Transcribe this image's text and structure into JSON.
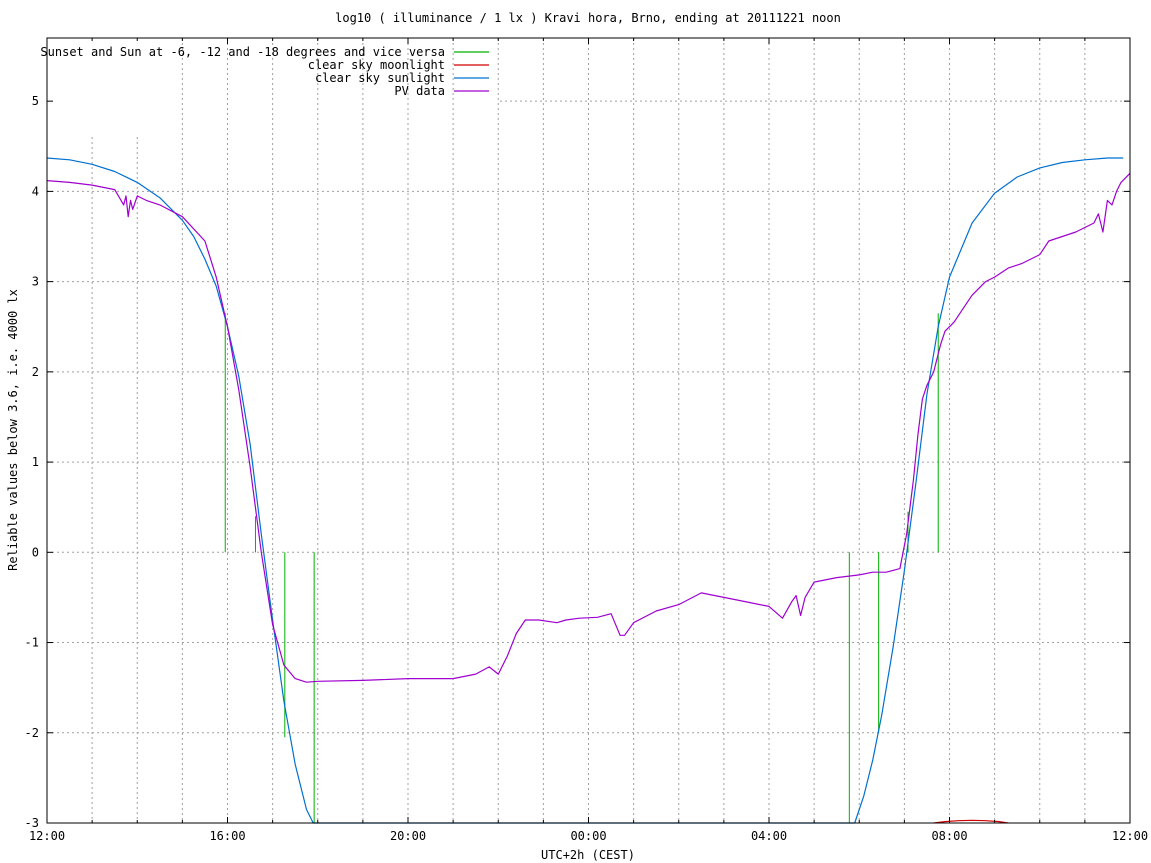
{
  "chart_data": {
    "type": "line",
    "title": "log10 ( illuminance / 1 lx ) Kravi hora, Brno, ending at 20111221 noon",
    "xlabel": "UTC+2h (CEST)",
    "ylabel": "Reliable values below 3.6, i.e. 4000 lx",
    "xlim": [
      12,
      36
    ],
    "ylim": [
      -3,
      5.7
    ],
    "grid": true,
    "legend_position": "top-left",
    "x_tick_values": [
      12,
      16,
      20,
      24,
      28,
      32,
      36
    ],
    "x_tick_labels": [
      "12:00",
      "16:00",
      "20:00",
      "00:00",
      "04:00",
      "08:00",
      "12:00"
    ],
    "x_minor_grid_step": 1,
    "y_ticks": [
      "-3",
      "-2",
      "-1",
      "0",
      "1",
      "2",
      "3",
      "4",
      "5"
    ],
    "series": [
      {
        "name": "Sunset and Sun at -6, -12 and -18 degrees and vice versa",
        "color": "#00b000",
        "kind": "impulses",
        "segments": [
          {
            "x": 15.95,
            "y0": 0,
            "y1": 2.65
          },
          {
            "x": 16.62,
            "y0": 0,
            "y1": 0.4
          },
          {
            "x": 17.27,
            "y0": 0,
            "y1": -2.05
          },
          {
            "x": 17.92,
            "y0": 0,
            "y1": -3
          },
          {
            "x": 29.78,
            "y0": 0,
            "y1": -3
          },
          {
            "x": 30.43,
            "y0": 0,
            "y1": -2.0
          },
          {
            "x": 31.08,
            "y0": 0,
            "y1": 0.45
          },
          {
            "x": 31.75,
            "y0": 0,
            "y1": 2.65
          }
        ]
      },
      {
        "name": "clear sky moonlight",
        "color": "#d00000",
        "x": [
          31.65,
          31.9,
          32.2,
          32.5,
          32.8,
          33.1,
          33.3
        ],
        "y": [
          -3.0,
          -2.985,
          -2.975,
          -2.97,
          -2.975,
          -2.985,
          -3.0
        ]
      },
      {
        "name": "clear sky sunlight",
        "color": "#0070d0",
        "x": [
          12.0,
          12.5,
          13.0,
          13.5,
          14.0,
          14.5,
          15.0,
          15.25,
          15.5,
          15.75,
          16.0,
          16.25,
          16.5,
          16.75,
          17.0,
          17.25,
          17.5,
          17.75,
          17.9,
          29.9,
          30.1,
          30.3,
          30.5,
          30.75,
          31.0,
          31.25,
          31.5,
          31.75,
          32.0,
          32.5,
          33.0,
          33.5,
          34.0,
          34.5,
          35.0,
          35.5,
          35.85
        ],
        "y": [
          4.37,
          4.35,
          4.3,
          4.22,
          4.1,
          3.93,
          3.68,
          3.5,
          3.25,
          2.95,
          2.5,
          1.95,
          1.2,
          0.2,
          -0.75,
          -1.65,
          -2.35,
          -2.85,
          -3.0,
          -3.0,
          -2.7,
          -2.3,
          -1.8,
          -1.05,
          -0.2,
          0.75,
          1.75,
          2.5,
          3.05,
          3.65,
          3.98,
          4.16,
          4.26,
          4.32,
          4.35,
          4.37,
          4.37
        ]
      },
      {
        "name": "PV data",
        "color": "#a000d0",
        "x": [
          12.0,
          12.5,
          13.0,
          13.5,
          13.7,
          13.75,
          13.8,
          13.85,
          13.9,
          14.0,
          14.2,
          14.5,
          15.0,
          15.5,
          15.75,
          16.0,
          16.25,
          16.5,
          16.75,
          17.0,
          17.25,
          17.5,
          17.75,
          18.0,
          19.0,
          20.0,
          21.0,
          21.5,
          21.8,
          22.0,
          22.2,
          22.4,
          22.6,
          22.9,
          23.3,
          23.5,
          23.8,
          24.2,
          24.5,
          24.7,
          24.8,
          25.0,
          25.5,
          26.0,
          26.5,
          27.0,
          27.5,
          28.0,
          28.3,
          28.5,
          28.6,
          28.7,
          28.8,
          29.0,
          29.5,
          30.0,
          30.3,
          30.6,
          30.9,
          31.05,
          31.2,
          31.3,
          31.4,
          31.5,
          31.65,
          31.8,
          31.9,
          32.1,
          32.3,
          32.5,
          32.8,
          33.0,
          33.3,
          33.6,
          34.0,
          34.2,
          34.5,
          34.8,
          35.0,
          35.2,
          35.3,
          35.4,
          35.5,
          35.6,
          35.7,
          35.8,
          36.0
        ],
        "y": [
          4.12,
          4.1,
          4.07,
          4.02,
          3.85,
          3.95,
          3.72,
          3.9,
          3.8,
          3.95,
          3.9,
          3.85,
          3.72,
          3.45,
          3.05,
          2.5,
          1.8,
          0.95,
          0.0,
          -0.8,
          -1.25,
          -1.4,
          -1.44,
          -1.43,
          -1.42,
          -1.4,
          -1.4,
          -1.35,
          -1.27,
          -1.35,
          -1.15,
          -0.9,
          -0.75,
          -0.75,
          -0.78,
          -0.75,
          -0.73,
          -0.72,
          -0.68,
          -0.92,
          -0.92,
          -0.78,
          -0.65,
          -0.58,
          -0.45,
          -0.5,
          -0.55,
          -0.6,
          -0.73,
          -0.55,
          -0.48,
          -0.7,
          -0.5,
          -0.33,
          -0.28,
          -0.25,
          -0.22,
          -0.22,
          -0.18,
          0.2,
          0.8,
          1.3,
          1.7,
          1.85,
          2.0,
          2.3,
          2.45,
          2.55,
          2.7,
          2.85,
          3.0,
          3.05,
          3.15,
          3.2,
          3.3,
          3.45,
          3.5,
          3.55,
          3.6,
          3.65,
          3.75,
          3.55,
          3.9,
          3.85,
          4.0,
          4.1,
          4.2
        ]
      }
    ]
  }
}
